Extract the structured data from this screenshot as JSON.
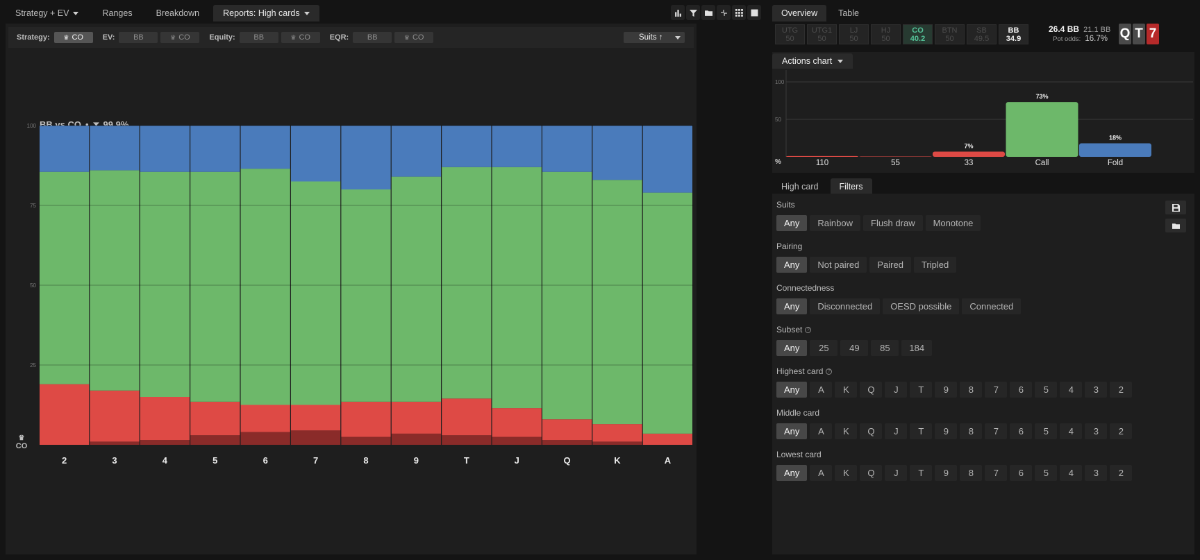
{
  "top_tabs": [
    {
      "label": "Strategy + EV",
      "dropdown": true,
      "active": false
    },
    {
      "label": "Ranges",
      "dropdown": false,
      "active": false
    },
    {
      "label": "Breakdown",
      "dropdown": false,
      "active": false
    },
    {
      "label": "Reports: High cards",
      "dropdown": true,
      "active": true
    }
  ],
  "toolbar_icons": [
    "bar-chart-icon",
    "filter-icon",
    "folder-icon",
    "collapse-icon",
    "grid-icon",
    "square-icon"
  ],
  "filterbar": {
    "strategy_label": "Strategy:",
    "strategy_co": "CO",
    "ev_label": "EV:",
    "ev_bb": "BB",
    "ev_co": "CO",
    "equity_label": "Equity:",
    "equity_bb": "BB",
    "equity_co": "CO",
    "eqr_label": "EQR:",
    "eqr_bb": "BB",
    "eqr_co": "CO",
    "suits_label": "Suits ↑"
  },
  "chart_header": {
    "matchup": "BB vs CO",
    "separator": "•",
    "filter_pct": "99.9%"
  },
  "player_label": "CO",
  "colors": {
    "raise_blue": "#4a7bbb",
    "call_green": "#6db86a",
    "bet_red": "#de4a45",
    "big_bet_darkred": "#8a2b29",
    "co_green": "#55c49a"
  },
  "chart_data": {
    "type": "bar",
    "stacked": true,
    "categories": [
      "2",
      "3",
      "4",
      "5",
      "6",
      "7",
      "8",
      "9",
      "T",
      "J",
      "Q",
      "K",
      "A"
    ],
    "ylim": [
      0,
      100
    ],
    "yticks": [
      100,
      75,
      50,
      25
    ],
    "series": [
      {
        "key": "darkred",
        "values": [
          0,
          1,
          1.5,
          3,
          4,
          4.5,
          2.5,
          3.5,
          3,
          2.5,
          1.5,
          1,
          0
        ]
      },
      {
        "key": "red",
        "values": [
          19,
          16,
          13.5,
          10.5,
          8.5,
          8,
          11,
          10,
          11.5,
          9,
          6.5,
          5.5,
          3.5
        ]
      },
      {
        "key": "green",
        "values": [
          66.5,
          69,
          70.5,
          72,
          74,
          70,
          66.5,
          70.5,
          72.5,
          75.5,
          77.5,
          76.5,
          75.5
        ]
      },
      {
        "key": "blue",
        "values": [
          14.5,
          14,
          14.5,
          14.5,
          13.5,
          17.5,
          20,
          16,
          13,
          13,
          14.5,
          17,
          21
        ]
      }
    ]
  },
  "right_tabs": [
    {
      "label": "Overview",
      "active": true
    },
    {
      "label": "Table",
      "active": false
    }
  ],
  "seats": [
    {
      "pos": "UTG",
      "val": "50",
      "state": "out"
    },
    {
      "pos": "UTG1",
      "val": "50",
      "state": "out"
    },
    {
      "pos": "LJ",
      "val": "50",
      "state": "out"
    },
    {
      "pos": "HJ",
      "val": "50",
      "state": "out"
    },
    {
      "pos": "CO",
      "val": "40.2",
      "state": "co"
    },
    {
      "pos": "BTN",
      "val": "50",
      "state": "out"
    },
    {
      "pos": "SB",
      "val": "49.5",
      "state": "out"
    },
    {
      "pos": "BB",
      "val": "34.9",
      "state": "bb"
    }
  ],
  "stack_info": {
    "pot": "26.4 BB",
    "stack": "21.1 BB",
    "pot_odds_label": "Pot odds:",
    "pot_odds": "16.7%"
  },
  "board": [
    {
      "rank": "Q",
      "suit": "s"
    },
    {
      "rank": "T",
      "suit": "s"
    },
    {
      "rank": "7",
      "suit": "h"
    }
  ],
  "actions_chart": {
    "tab_label": "Actions chart",
    "y_top": "100",
    "y_mid": "50",
    "y_unit": "%",
    "chart_data": {
      "type": "bar",
      "categories": [
        "110",
        "55",
        "33",
        "Call",
        "Fold"
      ],
      "values": [
        1,
        0.5,
        7,
        73,
        18
      ],
      "labels": [
        "",
        "",
        "7%",
        "73%",
        "18%"
      ],
      "colors": [
        "#de4a45",
        "#de4a45",
        "#de4a45",
        "#6db86a",
        "#4a7bbb"
      ],
      "ylim": [
        0,
        100
      ]
    }
  },
  "lower_tabs": [
    {
      "label": "High card",
      "active": false
    },
    {
      "label": "Filters",
      "active": true
    }
  ],
  "filters": {
    "suits": {
      "label": "Suits",
      "options": [
        "Any",
        "Rainbow",
        "Flush draw",
        "Monotone"
      ]
    },
    "pairing": {
      "label": "Pairing",
      "options": [
        "Any",
        "Not paired",
        "Paired",
        "Tripled"
      ]
    },
    "connectedness": {
      "label": "Connectedness",
      "options": [
        "Any",
        "Disconnected",
        "OESD possible",
        "Connected"
      ]
    },
    "subset": {
      "label": "Subset",
      "options": [
        "Any",
        "25",
        "49",
        "85",
        "184"
      ]
    },
    "highest": {
      "label": "Highest card",
      "options": [
        "Any",
        "A",
        "K",
        "Q",
        "J",
        "T",
        "9",
        "8",
        "7",
        "6",
        "5",
        "4",
        "3",
        "2"
      ]
    },
    "middle": {
      "label": "Middle card",
      "options": [
        "Any",
        "A",
        "K",
        "Q",
        "J",
        "T",
        "9",
        "8",
        "7",
        "6",
        "5",
        "4",
        "3",
        "2"
      ]
    },
    "lowest": {
      "label": "Lowest card",
      "options": [
        "Any",
        "A",
        "K",
        "Q",
        "J",
        "T",
        "9",
        "8",
        "7",
        "6",
        "5",
        "4",
        "3",
        "2"
      ]
    }
  }
}
